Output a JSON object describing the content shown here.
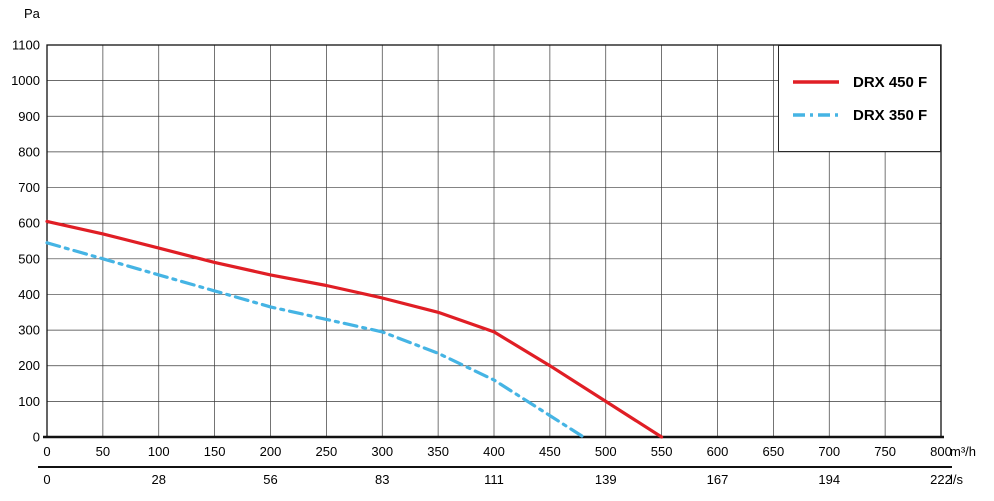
{
  "chart_data": {
    "type": "line",
    "title": "",
    "grid": true,
    "legend_position": "top-right",
    "y_axis": {
      "unit": "Pa",
      "min": 0,
      "max": 1100,
      "step": 100,
      "ticks": [
        0,
        100,
        200,
        300,
        400,
        500,
        600,
        700,
        800,
        900,
        1000,
        1100
      ]
    },
    "x_axis_primary": {
      "unit": "m³/h",
      "min": 0,
      "max": 800,
      "step": 50,
      "ticks": [
        0,
        50,
        100,
        150,
        200,
        250,
        300,
        350,
        400,
        450,
        500,
        550,
        600,
        650,
        700,
        750,
        800
      ]
    },
    "x_axis_secondary": {
      "unit": "l/s",
      "tick_labels": [
        "0",
        "28",
        "56",
        "83",
        "111",
        "139",
        "167",
        "194",
        "222"
      ],
      "tick_positions_m3h": [
        0,
        100,
        200,
        300,
        400,
        500,
        600,
        700,
        800
      ]
    },
    "series": [
      {
        "name": "DRX 450 F",
        "color": "#e01e25",
        "style": "solid",
        "points": [
          [
            0,
            605
          ],
          [
            50,
            570
          ],
          [
            100,
            530
          ],
          [
            150,
            490
          ],
          [
            200,
            455
          ],
          [
            250,
            425
          ],
          [
            300,
            390
          ],
          [
            350,
            350
          ],
          [
            400,
            295
          ],
          [
            450,
            200
          ],
          [
            500,
            100
          ],
          [
            550,
            0
          ]
        ]
      },
      {
        "name": "DRX 350 F",
        "color": "#45b4e4",
        "style": "dash-dot",
        "points": [
          [
            0,
            545
          ],
          [
            50,
            500
          ],
          [
            100,
            455
          ],
          [
            150,
            410
          ],
          [
            200,
            365
          ],
          [
            250,
            330
          ],
          [
            300,
            295
          ],
          [
            350,
            235
          ],
          [
            400,
            160
          ],
          [
            450,
            60
          ],
          [
            480,
            0
          ]
        ]
      }
    ]
  }
}
